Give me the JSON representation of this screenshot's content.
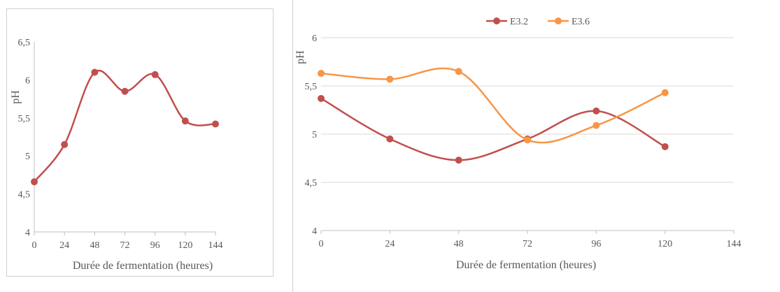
{
  "chart_data": [
    {
      "type": "line",
      "smooth": true,
      "grid": false,
      "xlabel": "Durée de fermentation (heures)",
      "ylabel": "pH",
      "x": [
        0,
        24,
        48,
        72,
        96,
        120,
        144
      ],
      "x_tick_labels": [
        "0",
        "24",
        "48",
        "72",
        "96",
        "120",
        "144"
      ],
      "y_tick_labels": [
        "4",
        "4,5",
        "5",
        "5,5",
        "6",
        "6,5"
      ],
      "ylim": [
        4,
        6.5
      ],
      "series": [
        {
          "color": "#c0504d",
          "values": [
            4.66,
            5.15,
            6.1,
            5.85,
            6.07,
            5.46,
            5.42
          ]
        }
      ]
    },
    {
      "type": "line",
      "smooth": true,
      "grid": true,
      "legend_position": "top",
      "xlabel": "Durée de fermentation (heures)",
      "ylabel": "pH",
      "x": [
        0,
        24,
        48,
        72,
        96,
        120
      ],
      "x_tick_labels": [
        "0",
        "24",
        "48",
        "72",
        "96",
        "120",
        "144"
      ],
      "y_tick_labels": [
        "4",
        "4,5",
        "5",
        "5,5",
        "6"
      ],
      "ylim": [
        4,
        6
      ],
      "xlim": [
        0,
        144
      ],
      "series": [
        {
          "name": "E3.2",
          "color": "#c0504d",
          "values": [
            5.37,
            4.95,
            4.73,
            4.95,
            5.24,
            4.87
          ]
        },
        {
          "name": "E3.6",
          "color": "#f79646",
          "values": [
            5.63,
            5.57,
            5.65,
            4.94,
            5.09,
            5.43
          ]
        }
      ]
    }
  ]
}
